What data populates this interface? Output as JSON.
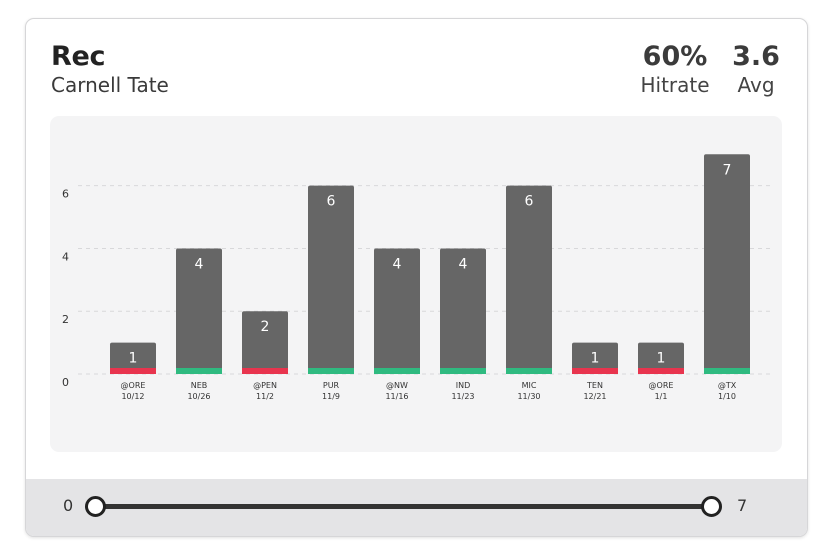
{
  "header": {
    "title": "Rec",
    "player": "Carnell Tate",
    "hitrate_value": "60%",
    "hitrate_label": "Hitrate",
    "avg_value": "3.6",
    "avg_label": "Avg"
  },
  "chart_data": {
    "type": "bar",
    "title": "",
    "xlabel": "",
    "ylabel": "",
    "ylim": [
      0,
      7.2
    ],
    "yticks": [
      "0",
      "2",
      "4",
      "6"
    ],
    "grid": true,
    "categories": [
      "@ORE",
      "NEB",
      "@PEN",
      "PUR",
      "@NW",
      "IND",
      "MIC",
      "TEN",
      "@ORE",
      "@TX"
    ],
    "dates": [
      "10/12",
      "10/26",
      "11/2",
      "11/9",
      "11/16",
      "11/23",
      "11/30",
      "12/21",
      "1/1",
      "1/10"
    ],
    "values": [
      1,
      4,
      2,
      6,
      4,
      4,
      6,
      1,
      1,
      7
    ],
    "value_labels": [
      "1",
      "4",
      "2",
      "6",
      "4",
      "4",
      "6",
      "1",
      "1",
      "7"
    ],
    "result": [
      "miss",
      "hit",
      "miss",
      "hit",
      "hit",
      "hit",
      "hit",
      "miss",
      "miss",
      "hit"
    ],
    "colors": {
      "bar": "#666666",
      "hit": "#2fba80",
      "miss": "#e8344e",
      "grid": "#d8d8da"
    }
  },
  "slider": {
    "min_label": "0",
    "max_label": "7",
    "min_value": 0,
    "max_value": 7
  }
}
